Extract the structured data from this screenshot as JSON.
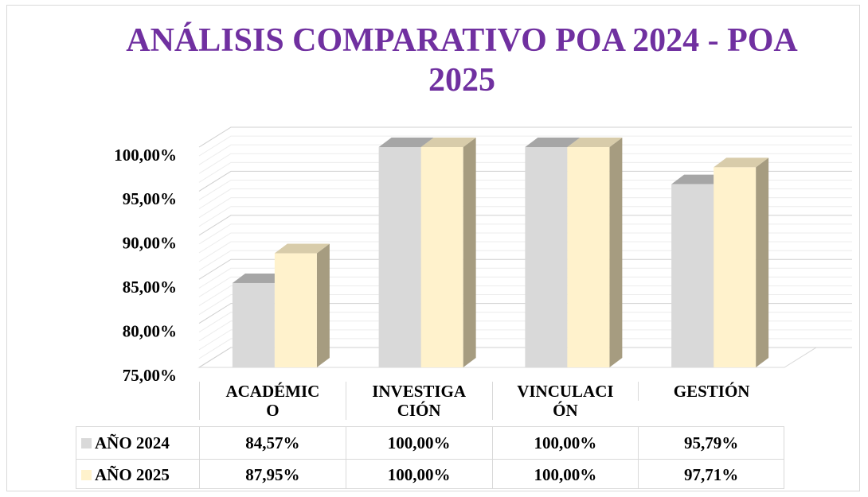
{
  "chart_data": {
    "type": "bar3d",
    "title": "ANÁLISIS COMPARATIVO POA 2024 - POA 2025",
    "categories": [
      "ACADÉMICO",
      "INVESTIGACIÓN",
      "VINCULACIÓN",
      "GESTIÓN"
    ],
    "series": [
      {
        "name": "AÑO 2024",
        "color": "#d9d9d9",
        "values": [
          84.57,
          100,
          100,
          95.79
        ],
        "value_labels": [
          "84,57%",
          "100,00%",
          "100,00%",
          "95,79%"
        ]
      },
      {
        "name": "AÑO 2025",
        "color": "#fff2cc",
        "values": [
          87.95,
          100,
          100,
          97.71
        ],
        "value_labels": [
          "87,95%",
          "100,00%",
          "100,00%",
          "97,71%"
        ]
      }
    ],
    "ylim": [
      75,
      100
    ],
    "yticks": [
      {
        "value": 75,
        "label": "75,00%"
      },
      {
        "value": 80,
        "label": "80,00%"
      },
      {
        "value": 85,
        "label": "85,00%"
      },
      {
        "value": 90,
        "label": "90,00%"
      },
      {
        "value": 95,
        "label": "95,00%"
      },
      {
        "value": 100,
        "label": "100,00%"
      }
    ],
    "grid": true,
    "legend": "table"
  }
}
